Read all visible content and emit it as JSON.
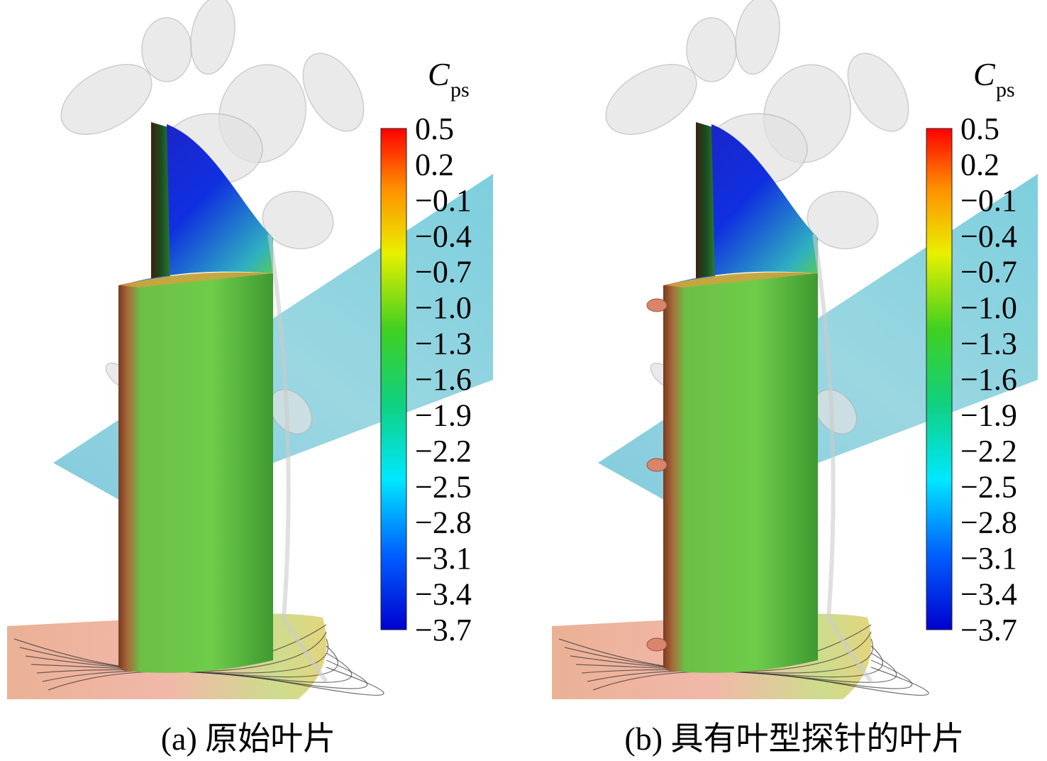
{
  "panels": [
    {
      "caption": "(a) 原始叶片",
      "colorbar": {
        "title": "C",
        "title_subscript": "ps",
        "ticks": [
          0.5,
          0.2,
          {
            "value": -0.1,
            "label": "−0.1"
          },
          {
            "value": -0.4,
            "label": "−0.4"
          },
          {
            "value": -0.7,
            "label": "−0.7"
          },
          {
            "value": -1.0,
            "label": "−1.0"
          },
          {
            "value": -1.3,
            "label": "−1.3"
          },
          {
            "value": -1.6,
            "label": "−1.6"
          },
          {
            "value": -1.9,
            "label": "−1.9"
          },
          {
            "value": -2.2,
            "label": "−2.2"
          },
          {
            "value": -2.5,
            "label": "−2.5"
          },
          {
            "value": -2.8,
            "label": "−2.8"
          },
          {
            "value": -3.1,
            "label": "−3.1"
          },
          {
            "value": -3.4,
            "label": "−3.4"
          },
          {
            "value": -3.7,
            "label": "−3.7"
          }
        ]
      }
    },
    {
      "caption": "(b) 具有叶型探针的叶片",
      "colorbar": {
        "title": "C",
        "title_subscript": "ps",
        "ticks": [
          0.5,
          0.2,
          {
            "value": -0.1,
            "label": "−0.1"
          },
          {
            "value": -0.4,
            "label": "−0.4"
          },
          {
            "value": -0.7,
            "label": "−0.7"
          },
          {
            "value": -1.0,
            "label": "−1.0"
          },
          {
            "value": -1.3,
            "label": "−1.3"
          },
          {
            "value": -1.6,
            "label": "−1.6"
          },
          {
            "value": -1.9,
            "label": "−1.9"
          },
          {
            "value": -2.2,
            "label": "−2.2"
          },
          {
            "value": -2.5,
            "label": "−2.5"
          },
          {
            "value": -2.8,
            "label": "−2.8"
          },
          {
            "value": -3.1,
            "label": "−3.1"
          },
          {
            "value": -3.4,
            "label": "−3.4"
          },
          {
            "value": -3.7,
            "label": "−3.7"
          }
        ]
      }
    }
  ]
}
